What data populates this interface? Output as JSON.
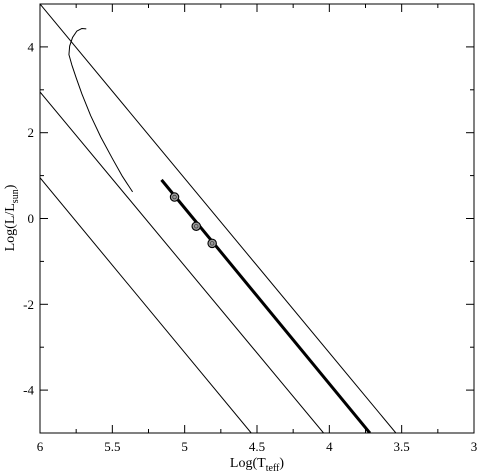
{
  "chart_data": {
    "type": "line",
    "title": "",
    "xlabel": {
      "main": "Log(T",
      "sub": "teff",
      "close": ")"
    },
    "ylabel": {
      "main": "Log(L/L",
      "sub": "sun",
      "close": ")"
    },
    "xlim": [
      6,
      3
    ],
    "ylim": [
      -5,
      5
    ],
    "xticks": [
      6,
      5.5,
      5,
      4.5,
      4,
      3.5,
      3
    ],
    "xtick_labels": [
      "6",
      "5.5",
      "5",
      "4.5",
      "4",
      "3.5",
      "3"
    ],
    "yticks": [
      -4,
      -2,
      0,
      2,
      4
    ],
    "ytick_labels": [
      "-4",
      "-2",
      "0",
      "2",
      "4"
    ],
    "grid": false,
    "series": [
      {
        "kind": "thin-line",
        "x": [
          6.0,
          3.54
        ],
        "y": [
          5.0,
          -5.0
        ]
      },
      {
        "kind": "thin-line",
        "x": [
          6.0,
          4.04
        ],
        "y": [
          2.95,
          -5.0
        ]
      },
      {
        "kind": "thin-line",
        "x": [
          6.0,
          4.54
        ],
        "y": [
          0.95,
          -5.0
        ]
      },
      {
        "kind": "thick-line",
        "x": [
          5.16,
          3.72
        ],
        "y": [
          0.9,
          -5.0
        ]
      },
      {
        "kind": "thin-curve",
        "x": [
          5.68,
          5.71,
          5.745,
          5.775,
          5.795,
          5.8,
          5.78,
          5.75,
          5.71,
          5.65,
          5.58,
          5.5,
          5.43,
          5.36
        ],
        "y": [
          4.42,
          4.43,
          4.37,
          4.22,
          4.02,
          3.82,
          3.58,
          3.28,
          2.9,
          2.4,
          1.9,
          1.4,
          0.98,
          0.62
        ]
      },
      {
        "kind": "markers",
        "x": [
          5.07,
          4.92,
          4.81
        ],
        "y": [
          0.5,
          -0.18,
          -0.58
        ]
      }
    ]
  }
}
